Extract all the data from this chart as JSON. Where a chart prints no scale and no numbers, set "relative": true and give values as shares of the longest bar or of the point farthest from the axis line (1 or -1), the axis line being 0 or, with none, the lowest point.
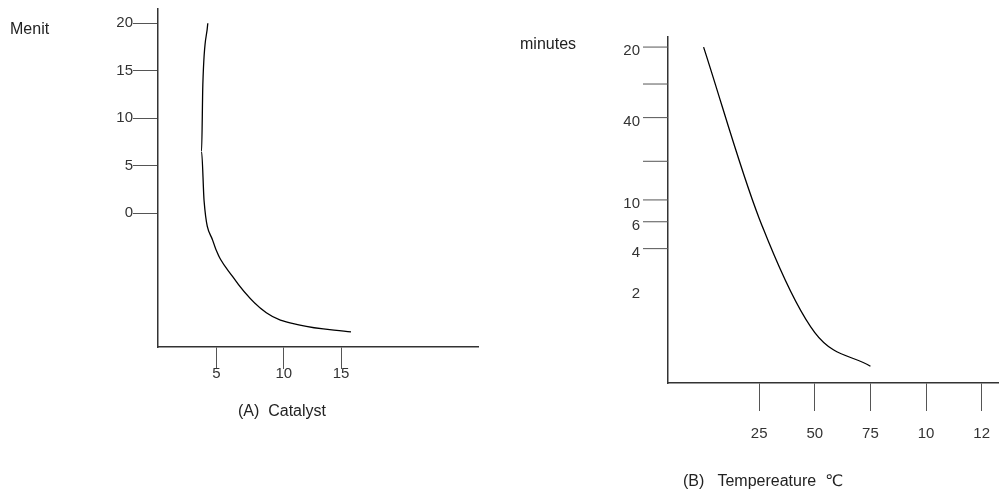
{
  "chart_data": [
    {
      "type": "line",
      "ylabel": "Menit",
      "xlabel": "(A)  Catalyst",
      "xlim": [
        0.3,
        26
      ],
      "ylim": [
        -14.1,
        21.5
      ],
      "xticks": [
        5,
        {
          "value": 10.4,
          "label": "10"
        },
        15
      ],
      "yticks": [
        0,
        5,
        10,
        15,
        20
      ],
      "x": [
        4.3,
        3.9,
        3.8,
        4.0,
        4.7,
        6.3,
        9.0,
        11.7,
        15.8
      ],
      "series": [
        {
          "color": "#000000",
          "values": [
            20.0,
            13.5,
            6.5,
            1.3,
            -2.9,
            -6.7,
            -10.5,
            -11.8,
            -12.5
          ]
        }
      ],
      "marker": "none"
    },
    {
      "type": "line",
      "ylabel": "minutes",
      "xlabel": "(B)   Tempereature  ℃",
      "relative": true,
      "categories": [
        null,
        "25",
        "50",
        "75",
        "10",
        "12"
      ],
      "series": [
        {
          "color": "#000000",
          "values": [
            1.0,
            0.49,
            0.15,
            0.05,
            null,
            null
          ]
        }
      ],
      "annotations": [
        "20",
        "40",
        "10",
        "6",
        "4",
        "2"
      ],
      "marker": "none"
    }
  ]
}
